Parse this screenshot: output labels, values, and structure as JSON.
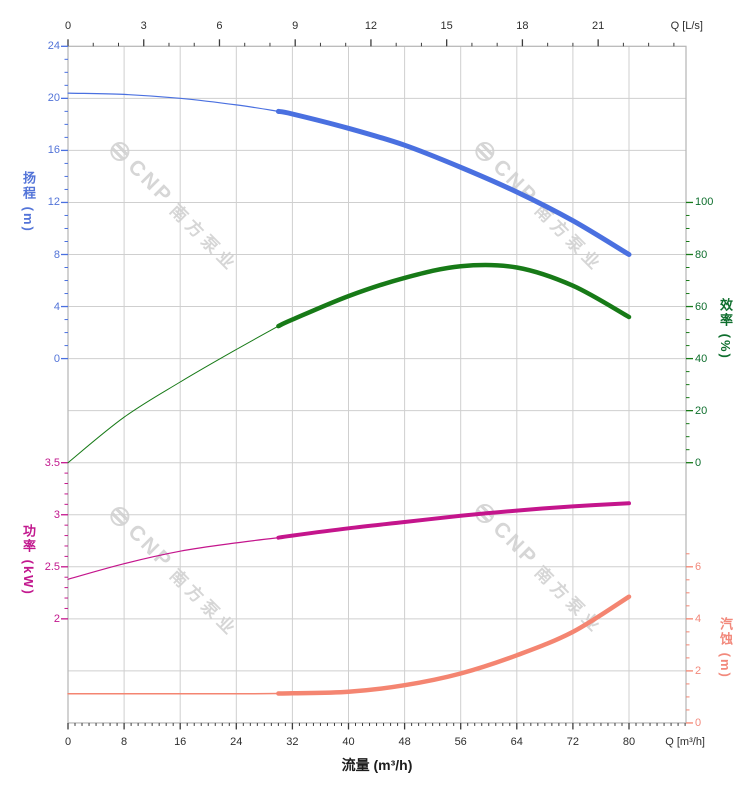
{
  "watermark": {
    "brand": "CNP",
    "brand_cn": "南方泵业",
    "color": "#d2d2d2"
  },
  "colors": {
    "grid": "#cfcfcf",
    "frame": "#b5b5b5",
    "black_axis": "#3c3c3c",
    "head_blue": "#4a70e0",
    "eff_green": "#177a17",
    "power_magenta": "#c4158c",
    "npsh_salmon": "#f48571"
  },
  "chart_data": {
    "type": "line",
    "grid": true,
    "x_axis_bottom": {
      "title": "流量 (m³/h)",
      "end_label": "Q [m³/h]",
      "unit": "m³/h",
      "major_ticks": [
        0,
        8,
        16,
        24,
        32,
        40,
        48,
        56,
        64,
        72,
        80
      ],
      "minor_step": 1,
      "minor_range": [
        0,
        88
      ],
      "label_color": "#2e2e2e",
      "tick_color": "#3c3c3c"
    },
    "x_axis_top": {
      "end_label": "Q [L/s]",
      "unit": "L/s",
      "major_ticks": [
        0,
        3,
        6,
        9,
        12,
        15,
        18,
        21
      ],
      "minor_step": 1,
      "minor_range": [
        0,
        24
      ],
      "label_color": "#2e2e2e",
      "tick_color": "#3c3c3c"
    },
    "y_axes": {
      "head": {
        "title": "扬程 (m)",
        "side": "left",
        "color": "#4a70e0",
        "label_color": "#5374d8",
        "major_ticks": [
          24,
          20,
          16,
          12,
          8,
          4,
          0
        ],
        "minor_step": 1,
        "minor_range": [
          0,
          24
        ]
      },
      "eff": {
        "title": "效率 (%)",
        "side": "right",
        "color": "#177a17",
        "label_color": "#0e6e2d",
        "major_ticks": [
          100,
          80,
          60,
          40,
          20,
          0
        ],
        "minor_step": 5,
        "minor_range": [
          0,
          100
        ]
      },
      "pow": {
        "title": "功率 (kW)",
        "side": "left",
        "color": "#c4158c",
        "label_color": "#c2188e",
        "major_ticks": [
          3.5,
          3,
          2.5,
          2
        ],
        "minor_step": 0.1,
        "minor_range": [
          2,
          3.5
        ]
      },
      "npsh": {
        "title": "汽蚀 (m)",
        "side": "right",
        "color": "#f48571",
        "label_color": "#f2897c",
        "major_ticks": [
          6,
          4,
          2,
          0
        ],
        "minor_step": 0.5,
        "minor_range": [
          0,
          6.5
        ]
      }
    },
    "series": [
      {
        "name": "head-curve",
        "axis": "head",
        "color": "#4a70e0",
        "rated_from": 30,
        "width_thin": 1.2,
        "width_thick": 5,
        "q": [
          0,
          8,
          16,
          24,
          30,
          32,
          40,
          48,
          56,
          64,
          72,
          80
        ],
        "v": [
          20.4,
          20.3,
          20.0,
          19.5,
          19.0,
          18.8,
          17.7,
          16.4,
          14.7,
          12.8,
          10.6,
          8.0
        ]
      },
      {
        "name": "efficiency-curve",
        "axis": "eff",
        "color": "#177a17",
        "rated_from": 30,
        "width_thin": 1,
        "width_thick": 4.5,
        "q": [
          0,
          8,
          16,
          24,
          30,
          32,
          40,
          48,
          56,
          64,
          72,
          80
        ],
        "v": [
          0,
          17.5,
          31,
          43.5,
          52.5,
          55,
          64,
          71,
          75.5,
          75,
          68,
          56
        ]
      },
      {
        "name": "power-curve",
        "axis": "pow",
        "color": "#c4158c",
        "rated_from": 30,
        "width_thin": 1.2,
        "width_thick": 4,
        "q": [
          0,
          8,
          16,
          24,
          30,
          32,
          40,
          48,
          56,
          64,
          72,
          80
        ],
        "v": [
          2.38,
          2.53,
          2.65,
          2.73,
          2.78,
          2.8,
          2.87,
          2.93,
          2.99,
          3.04,
          3.08,
          3.11
        ]
      },
      {
        "name": "npsh-curve",
        "axis": "npsh",
        "color": "#f48571",
        "rated_from": 30,
        "width_thin": 1.5,
        "width_thick": 4.5,
        "q": [
          0,
          8,
          16,
          24,
          30,
          32,
          40,
          48,
          56,
          64,
          72,
          80
        ],
        "v": [
          1.12,
          1.12,
          1.12,
          1.12,
          1.13,
          1.14,
          1.2,
          1.45,
          1.9,
          2.6,
          3.5,
          4.85
        ]
      }
    ]
  }
}
